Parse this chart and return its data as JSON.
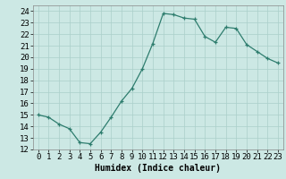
{
  "x": [
    0,
    1,
    2,
    3,
    4,
    5,
    6,
    7,
    8,
    9,
    10,
    11,
    12,
    13,
    14,
    15,
    16,
    17,
    18,
    19,
    20,
    21,
    22,
    23
  ],
  "y": [
    15.0,
    14.8,
    14.2,
    13.8,
    12.6,
    12.5,
    13.5,
    14.8,
    16.2,
    17.3,
    19.0,
    21.2,
    23.8,
    23.7,
    23.4,
    23.3,
    21.8,
    21.3,
    22.6,
    22.5,
    21.1,
    20.5,
    19.9,
    19.5
  ],
  "xlabel": "Humidex (Indice chaleur)",
  "ylim": [
    12,
    24.5
  ],
  "yticks": [
    12,
    13,
    14,
    15,
    16,
    17,
    18,
    19,
    20,
    21,
    22,
    23,
    24
  ],
  "xticks": [
    0,
    1,
    2,
    3,
    4,
    5,
    6,
    7,
    8,
    9,
    10,
    11,
    12,
    13,
    14,
    15,
    16,
    17,
    18,
    19,
    20,
    21,
    22,
    23
  ],
  "line_color": "#2e7d6e",
  "marker": "+",
  "bg_color": "#cce8e4",
  "grid_color": "#aacfca",
  "label_fontsize": 7,
  "tick_fontsize": 6.5
}
